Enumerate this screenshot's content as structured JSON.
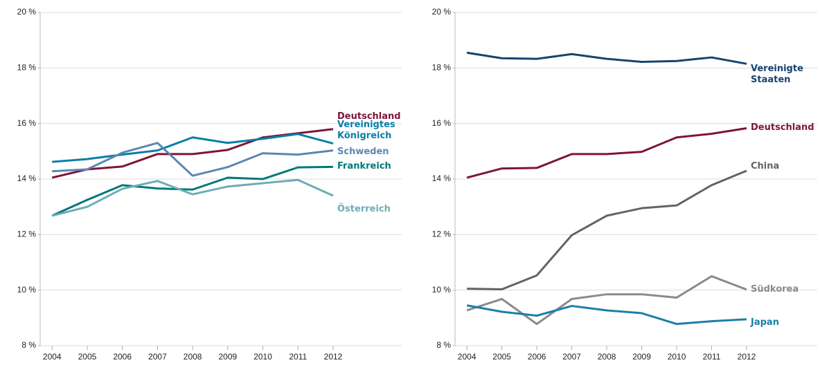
{
  "chart_data": [
    {
      "type": "line",
      "x": [
        2004,
        2005,
        2006,
        2007,
        2008,
        2009,
        2010,
        2011,
        2012
      ],
      "xlim": [
        2003.66,
        2012
      ],
      "xticks": [
        2004,
        2005,
        2006,
        2007,
        2008,
        2009,
        2010,
        2011,
        2012
      ],
      "ylim": [
        8,
        20
      ],
      "yticks": [
        {
          "value": 8,
          "label": "8 %"
        },
        {
          "value": 10,
          "label": "10 %"
        },
        {
          "value": 12,
          "label": "12 %"
        },
        {
          "value": 14,
          "label": "14 %"
        },
        {
          "value": 16,
          "label": "16 %"
        },
        {
          "value": 18,
          "label": "18 %"
        },
        {
          "value": 20,
          "label": "20 %"
        }
      ],
      "grid": true,
      "series": [
        {
          "name": "Deutschland",
          "color": "#7d1538",
          "values": [
            14.05,
            14.35,
            14.45,
            14.9,
            14.9,
            15.05,
            15.5,
            15.65,
            15.8
          ]
        },
        {
          "name": "Vereinigtes Königreich",
          "color": "#0a7ea8",
          "values": [
            14.62,
            14.72,
            14.88,
            15.03,
            15.5,
            15.3,
            15.45,
            15.62,
            15.28
          ]
        },
        {
          "name": "Schweden",
          "color": "#5b87b0",
          "values": [
            14.28,
            14.35,
            14.95,
            15.3,
            14.12,
            14.43,
            14.93,
            14.88,
            15.03
          ]
        },
        {
          "name": "Frankreich",
          "color": "#00787a",
          "values": [
            12.68,
            13.25,
            13.78,
            13.66,
            13.62,
            14.05,
            14.0,
            14.42,
            14.44
          ]
        },
        {
          "name": "Österreich",
          "color": "#6fabb5",
          "values": [
            12.68,
            13.0,
            13.65,
            13.93,
            13.45,
            13.73,
            13.85,
            13.97,
            13.4
          ]
        }
      ]
    },
    {
      "type": "line",
      "x": [
        2004,
        2005,
        2006,
        2007,
        2008,
        2009,
        2010,
        2011,
        2012
      ],
      "xlim": [
        2003.66,
        2012
      ],
      "xticks": [
        2004,
        2005,
        2006,
        2007,
        2008,
        2009,
        2010,
        2011,
        2012
      ],
      "ylim": [
        8,
        20
      ],
      "yticks": [
        {
          "value": 8,
          "label": "8 %"
        },
        {
          "value": 10,
          "label": "10 %"
        },
        {
          "value": 12,
          "label": "12 %"
        },
        {
          "value": 14,
          "label": "14 %"
        },
        {
          "value": 16,
          "label": "16 %"
        },
        {
          "value": 18,
          "label": "18 %"
        },
        {
          "value": 20,
          "label": "20 %"
        }
      ],
      "grid": true,
      "series": [
        {
          "name": "Vereinigte Staaten",
          "color": "#17436f",
          "values": [
            18.55,
            18.35,
            18.33,
            18.5,
            18.33,
            18.22,
            18.25,
            18.38,
            18.15
          ]
        },
        {
          "name": "Deutschland",
          "color": "#7d1538",
          "values": [
            14.05,
            14.38,
            14.4,
            14.9,
            14.9,
            14.98,
            15.5,
            15.63,
            15.83
          ]
        },
        {
          "name": "China",
          "color": "#5f6468",
          "values": [
            10.05,
            10.03,
            10.53,
            11.98,
            12.68,
            12.95,
            13.05,
            13.78,
            14.3
          ]
        },
        {
          "name": "Südkorea",
          "color": "#8a8a8a",
          "values": [
            9.27,
            9.68,
            8.78,
            9.68,
            9.85,
            9.85,
            9.73,
            10.5,
            10.02
          ]
        },
        {
          "name": "Japan",
          "color": "#1a7fa8",
          "values": [
            9.45,
            9.22,
            9.08,
            9.43,
            9.27,
            9.17,
            8.78,
            8.88,
            8.95
          ]
        }
      ]
    }
  ]
}
